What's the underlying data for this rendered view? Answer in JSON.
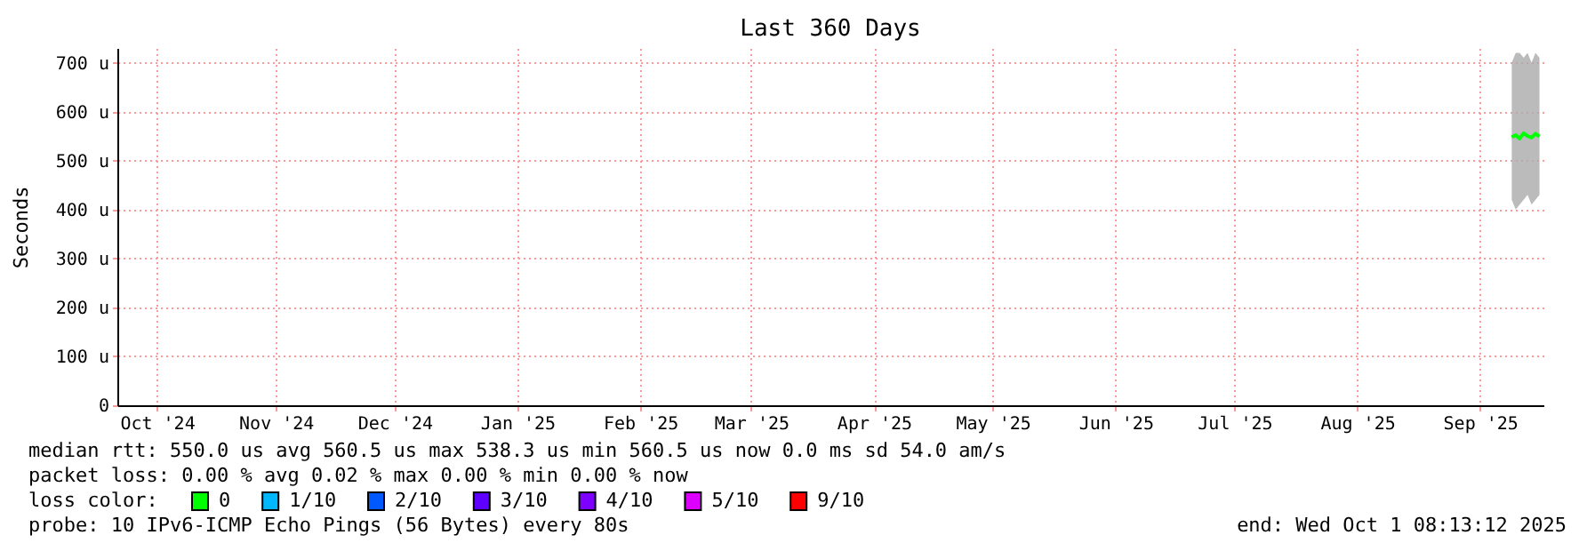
{
  "chart_data": {
    "type": "line",
    "title": "Last 360 Days",
    "ylabel": "Seconds",
    "legend_title": "loss color:",
    "legend": "bottom",
    "xlim": [
      "2024-10-06",
      "2025-10-01"
    ],
    "xticks": [
      {
        "value": "2024-10-16",
        "label": "Oct '24"
      },
      {
        "value": "2024-11-15",
        "label": "Nov '24"
      },
      {
        "value": "2024-12-15",
        "label": "Dec '24"
      },
      {
        "value": "2025-01-15",
        "label": "Jan '25"
      },
      {
        "value": "2025-02-15",
        "label": "Feb '25"
      },
      {
        "value": "2025-03-15",
        "label": "Mar '25"
      },
      {
        "value": "2025-04-15",
        "label": "Apr '25"
      },
      {
        "value": "2025-05-15",
        "label": "May '25"
      },
      {
        "value": "2025-06-15",
        "label": "Jun '25"
      },
      {
        "value": "2025-07-15",
        "label": "Jul '25"
      },
      {
        "value": "2025-08-15",
        "label": "Aug '25"
      },
      {
        "value": "2025-09-15",
        "label": "Sep '25"
      }
    ],
    "ylim": [
      0,
      730
    ],
    "yticks": [
      0,
      {
        "value": 100,
        "label": "100 u"
      },
      {
        "value": 200,
        "label": "200 u"
      },
      {
        "value": 300,
        "label": "300 u"
      },
      {
        "value": 400,
        "label": "400 u"
      },
      {
        "value": 500,
        "label": "500 u"
      },
      {
        "value": 600,
        "label": "600 u"
      },
      {
        "value": 700,
        "label": "700 u"
      }
    ],
    "grid": true,
    "marker": "none",
    "line_style": "solid",
    "series": [
      {
        "name": "0",
        "color": "#00ff00",
        "x": [
          "2025-09-23",
          "2025-09-24",
          "2025-09-25",
          "2025-09-26",
          "2025-09-27",
          "2025-09-28",
          "2025-09-29",
          "2025-09-30"
        ],
        "values": [
          548,
          552,
          545,
          556,
          550,
          547,
          555,
          549
        ],
        "lower": [
          420,
          400,
          410,
          420,
          430,
          410,
          420,
          430
        ],
        "upper": [
          700,
          720,
          720,
          710,
          720,
          700,
          720,
          710
        ]
      },
      {
        "name": "1/10",
        "color": "#00b8ff"
      },
      {
        "name": "2/10",
        "color": "#0059ff"
      },
      {
        "name": "3/10",
        "color": "#5e00ff"
      },
      {
        "name": "4/10",
        "color": "#7e00ff"
      },
      {
        "name": "5/10",
        "color": "#dd00ff"
      },
      {
        "name": "9/10",
        "color": "#ff0000"
      }
    ],
    "annotations": [
      "median rtt:  550.0 us avg  560.5 us max  538.3 us min  560.5 us now  0.0 ms sd  54.0   am/s",
      "packet loss: 0.00 % avg  0.02 % max  0.00 % min  0.00 % now",
      "probe:       10 IPv6-ICMP Echo Pings (56 Bytes) every 80s",
      "end: Wed Oct  1 08:13:12 2025"
    ]
  }
}
